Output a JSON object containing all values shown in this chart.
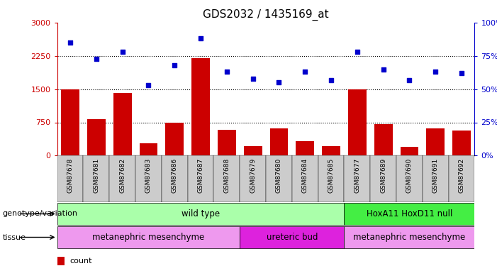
{
  "title": "GDS2032 / 1435169_at",
  "samples": [
    "GSM87678",
    "GSM87681",
    "GSM87682",
    "GSM87683",
    "GSM87686",
    "GSM87687",
    "GSM87688",
    "GSM87679",
    "GSM87680",
    "GSM87684",
    "GSM87685",
    "GSM87677",
    "GSM87689",
    "GSM87690",
    "GSM87691",
    "GSM87692"
  ],
  "counts": [
    1500,
    820,
    1420,
    280,
    750,
    2200,
    580,
    220,
    620,
    320,
    220,
    1500,
    710,
    200,
    620,
    560
  ],
  "percentiles": [
    85,
    73,
    78,
    53,
    68,
    88,
    63,
    58,
    55,
    63,
    57,
    78,
    65,
    57,
    63,
    62
  ],
  "ylim_left": [
    0,
    3000
  ],
  "ylim_right": [
    0,
    100
  ],
  "yticks_left": [
    0,
    750,
    1500,
    2250,
    3000
  ],
  "yticks_right": [
    0,
    25,
    50,
    75,
    100
  ],
  "bar_color": "#cc0000",
  "dot_color": "#0000cc",
  "genotype_groups": [
    {
      "label": "wild type",
      "start": 0,
      "end": 11,
      "color": "#aaffaa"
    },
    {
      "label": "HoxA11 HoxD11 null",
      "start": 11,
      "end": 16,
      "color": "#44ee44"
    }
  ],
  "tissue_groups": [
    {
      "label": "metanephric mesenchyme",
      "start": 0,
      "end": 7,
      "color": "#ee99ee"
    },
    {
      "label": "ureteric bud",
      "start": 7,
      "end": 11,
      "color": "#dd22dd"
    },
    {
      "label": "metanephric mesenchyme",
      "start": 11,
      "end": 16,
      "color": "#ee99ee"
    }
  ],
  "hline_values": [
    750,
    1500,
    2250
  ],
  "left_axis_color": "#cc0000",
  "right_axis_color": "#0000cc",
  "plot_bg": "#ffffff",
  "tick_bg": "#cccccc"
}
